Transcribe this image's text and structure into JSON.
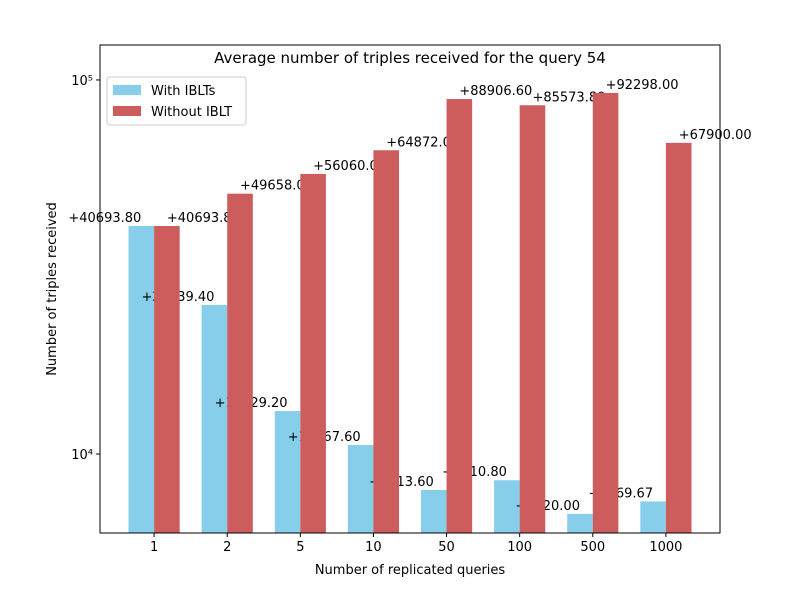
{
  "chart_data": {
    "type": "bar",
    "title": "Average number of triples received for the query 54",
    "x_label": "Number of replicated queries",
    "y_label": "Number of triples received",
    "categories": [
      "1",
      "2",
      "5",
      "10",
      "50",
      "100",
      "500",
      "1000"
    ],
    "series": [
      {
        "name": "With IBLTs",
        "color": "#87ceeb",
        "values": [
          40693.8,
          25039.4,
          13029.2,
          10567.6,
          8013.6,
          8510.8,
          6920.0,
          7469.67
        ],
        "value_labels": [
          "+40693.80",
          "+25039.40",
          "+13029.20",
          "+10567.60",
          "+8013.60",
          "+8510.80",
          "+6920.00",
          "+7469.67"
        ]
      },
      {
        "name": "Without IBLT",
        "color": "#cd5c5c",
        "values": [
          40693.8,
          49658.0,
          56060.0,
          64872.0,
          88906.6,
          85573.8,
          92298.0,
          67900.0
        ],
        "value_labels": [
          "+40693.80",
          "+49658.00",
          "+56060.00",
          "+64872.00",
          "+88906.60",
          "+85573.80",
          "+92298.00",
          "+67900.00"
        ]
      }
    ],
    "y_scale": "log",
    "ylim": [
      6150,
      124000
    ],
    "yticks": [
      {
        "value": 10000,
        "label": "10⁴"
      },
      {
        "value": 100000,
        "label": "10⁵"
      }
    ],
    "legend": "upper left",
    "grid": false
  }
}
